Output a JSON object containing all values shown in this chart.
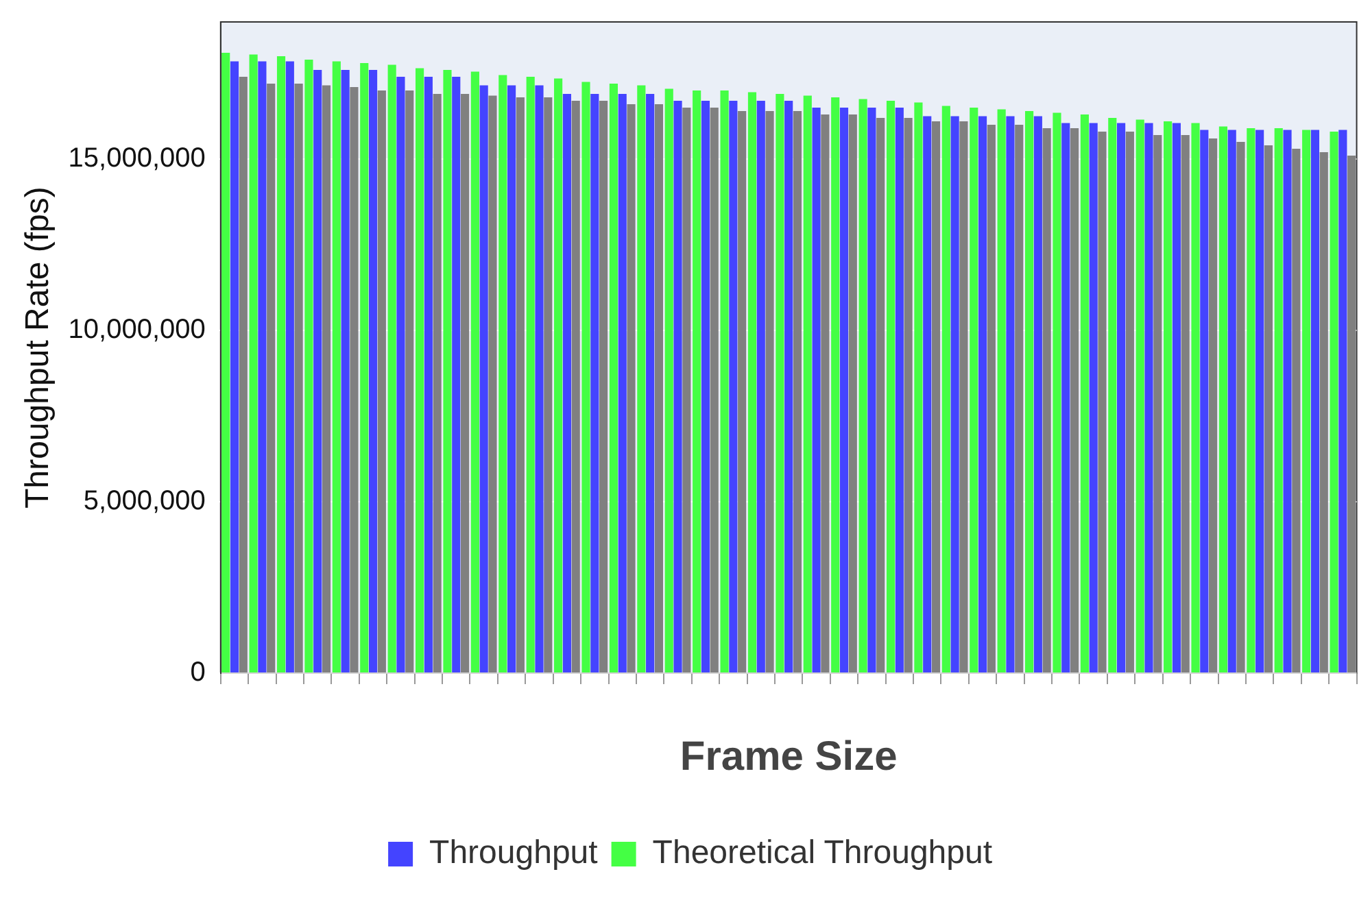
{
  "chart_data": {
    "type": "bar",
    "xlabel": "Frame Size",
    "ylabel": "Throughput Rate (fps)",
    "categories": [
      null,
      null,
      null,
      null,
      null,
      null,
      null,
      null,
      null,
      null,
      null,
      null,
      null,
      null,
      null,
      null,
      null,
      null,
      null,
      null,
      null,
      null,
      null,
      null,
      null,
      null,
      null,
      null,
      null,
      null,
      null,
      null,
      null,
      null,
      null,
      null,
      null,
      null,
      null,
      null,
      null
    ],
    "series": [
      {
        "name": "Theoretical Throughput",
        "color": "#44ff44",
        "values": [
          18100000,
          18050000,
          18000000,
          17900000,
          17850000,
          17800000,
          17750000,
          17650000,
          17600000,
          17550000,
          17450000,
          17400000,
          17350000,
          17250000,
          17200000,
          17150000,
          17050000,
          17000000,
          17000000,
          16950000,
          16900000,
          16850000,
          16800000,
          16750000,
          16700000,
          16650000,
          16550000,
          16500000,
          16450000,
          16400000,
          16350000,
          16300000,
          16200000,
          16150000,
          16100000,
          16050000,
          15950000,
          15900000,
          15900000,
          15850000,
          15800000
        ]
      },
      {
        "name": "Throughput",
        "color": "#4444ff",
        "values": [
          17850000,
          17850000,
          17850000,
          17600000,
          17600000,
          17600000,
          17400000,
          17400000,
          17400000,
          17150000,
          17150000,
          17150000,
          16900000,
          16900000,
          16900000,
          16900000,
          16700000,
          16700000,
          16700000,
          16700000,
          16700000,
          16500000,
          16500000,
          16500000,
          16500000,
          16250000,
          16250000,
          16250000,
          16250000,
          16250000,
          16050000,
          16050000,
          16050000,
          16050000,
          16050000,
          15850000,
          15850000,
          15850000,
          15850000,
          15850000,
          15850000
        ]
      },
      {
        "color": "#808080",
        "values": [
          17400000,
          17200000,
          17200000,
          17150000,
          17100000,
          17000000,
          17000000,
          16900000,
          16900000,
          16850000,
          16800000,
          16800000,
          16700000,
          16700000,
          16600000,
          16600000,
          16500000,
          16500000,
          16400000,
          16400000,
          16400000,
          16300000,
          16300000,
          16200000,
          16200000,
          16100000,
          16100000,
          16000000,
          16000000,
          15900000,
          15900000,
          15800000,
          15800000,
          15700000,
          15700000,
          15600000,
          15500000,
          15400000,
          15300000,
          15200000,
          15100000
        ]
      }
    ],
    "ylim": [
      0,
      19000000
    ],
    "yticks": [
      0,
      {
        "value": 5000000,
        "label": "5,000,000"
      },
      {
        "value": 10000000,
        "label": "10,000,000"
      },
      {
        "value": 15000000,
        "label": "15,000,000"
      }
    ],
    "grid": "y",
    "legend": "bottom"
  }
}
